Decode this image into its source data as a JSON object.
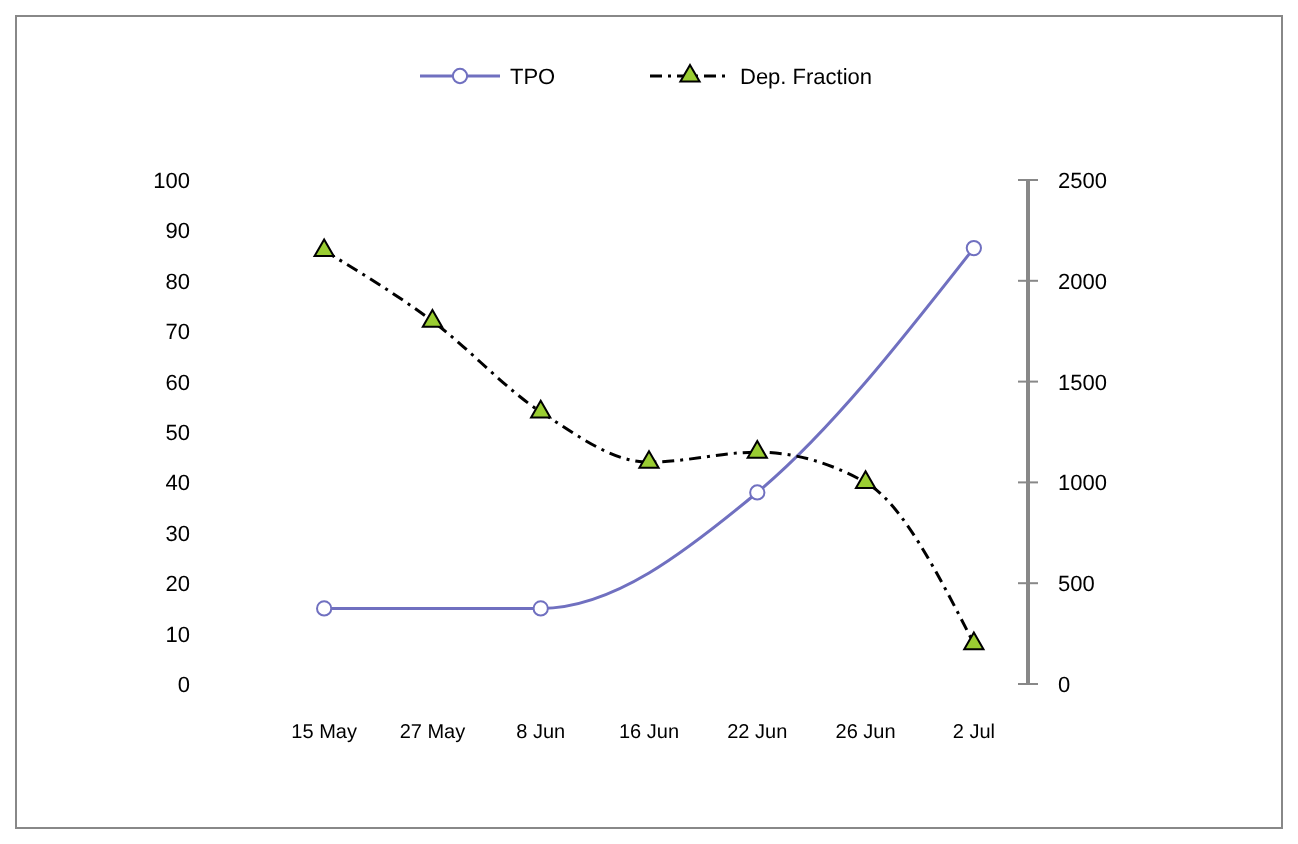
{
  "chart_data": {
    "type": "line",
    "categories": [
      "15 May",
      "27 May",
      "8 Jun",
      "16 Jun",
      "22 Jun",
      "26 Jun",
      "2 Jul"
    ],
    "series": [
      {
        "name": "TPO",
        "color": "#7070c0",
        "values": [
          15,
          null,
          15,
          null,
          38,
          null,
          86.5
        ],
        "marker": "circle",
        "line_style": "solid"
      },
      {
        "name": "Dep. Fraction",
        "color": "#000000",
        "values": [
          2150,
          1800,
          1350,
          1100,
          1150,
          1000,
          200
        ],
        "axis": "y2",
        "marker": "triangle",
        "line_style": "dashed"
      }
    ],
    "ylim": [
      0,
      100
    ],
    "yticks": [
      0,
      10,
      20,
      30,
      40,
      50,
      60,
      70,
      80,
      90,
      100
    ],
    "y2lim": [
      0,
      2500
    ],
    "y2ticks": [
      0,
      500,
      1000,
      1500,
      2000,
      2500
    ],
    "grid": false,
    "legend": "top"
  }
}
